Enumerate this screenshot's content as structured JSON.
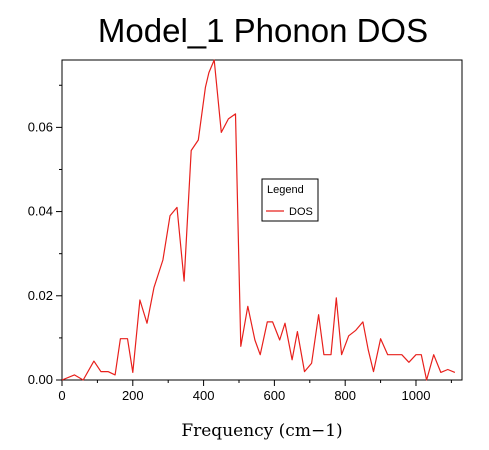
{
  "chart_data": {
    "type": "line",
    "title": "Model_1 Phonon DOS",
    "xlabel": "Frequency (cm−1)",
    "ylabel": "",
    "xlim": [
      0,
      1130
    ],
    "ylim": [
      0,
      0.076
    ],
    "xticks": [
      0,
      200,
      400,
      600,
      800,
      1000
    ],
    "yticks": [
      0.0,
      0.02,
      0.04,
      0.06
    ],
    "ytick_labels": [
      "0.00",
      "0.02",
      "0.04",
      "0.06"
    ],
    "grid": false,
    "legend": {
      "title": "Legend",
      "placement": "center-right",
      "entries": [
        "DOS"
      ]
    },
    "series": [
      {
        "name": "DOS",
        "color": "#e8201c",
        "x": [
          0,
          35,
          60,
          90,
          110,
          130,
          150,
          165,
          185,
          200,
          220,
          240,
          260,
          285,
          305,
          325,
          345,
          365,
          385,
          405,
          415,
          430,
          450,
          470,
          490,
          505,
          525,
          545,
          560,
          580,
          595,
          615,
          630,
          650,
          665,
          685,
          705,
          725,
          740,
          760,
          775,
          790,
          810,
          830,
          850,
          865,
          880,
          900,
          920,
          935,
          960,
          980,
          1000,
          1015,
          1030,
          1050,
          1070,
          1090,
          1110
        ],
        "y": [
          0.0,
          0.0012,
          0.0,
          0.0045,
          0.002,
          0.002,
          0.0012,
          0.0098,
          0.0098,
          0.0018,
          0.019,
          0.0135,
          0.022,
          0.0285,
          0.039,
          0.041,
          0.0235,
          0.0545,
          0.057,
          0.0695,
          0.073,
          0.076,
          0.0588,
          0.062,
          0.0632,
          0.008,
          0.0175,
          0.0095,
          0.006,
          0.0138,
          0.0138,
          0.0095,
          0.0135,
          0.0048,
          0.0115,
          0.002,
          0.004,
          0.0155,
          0.006,
          0.006,
          0.0195,
          0.006,
          0.0105,
          0.0118,
          0.0138,
          0.0072,
          0.002,
          0.0098,
          0.006,
          0.006,
          0.006,
          0.0042,
          0.006,
          0.006,
          0.0,
          0.006,
          0.0018,
          0.0025,
          0.0018
        ]
      }
    ]
  }
}
